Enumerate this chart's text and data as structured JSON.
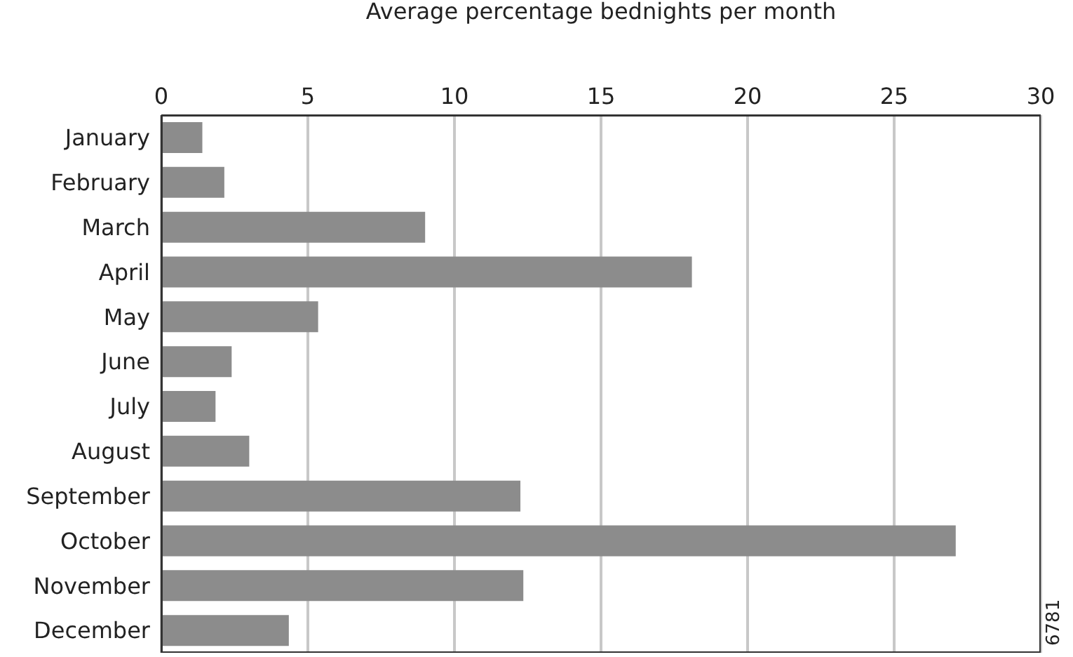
{
  "chart_data": {
    "type": "bar",
    "orientation": "horizontal",
    "xlabel": "Average percentage bednights per month",
    "categories": [
      "January",
      "February",
      "March",
      "April",
      "May",
      "June",
      "July",
      "August",
      "September",
      "October",
      "November",
      "December"
    ],
    "values": [
      1.4,
      2.15,
      9.0,
      18.1,
      5.35,
      2.4,
      1.85,
      3.0,
      12.25,
      27.1,
      12.35,
      4.35
    ],
    "color": "#8c8c8c",
    "xlim": [
      0,
      30
    ],
    "xticks": [
      0,
      5,
      10,
      15,
      20,
      25,
      30
    ],
    "grid": "x",
    "legend": false,
    "annotations": [
      "6781"
    ]
  }
}
